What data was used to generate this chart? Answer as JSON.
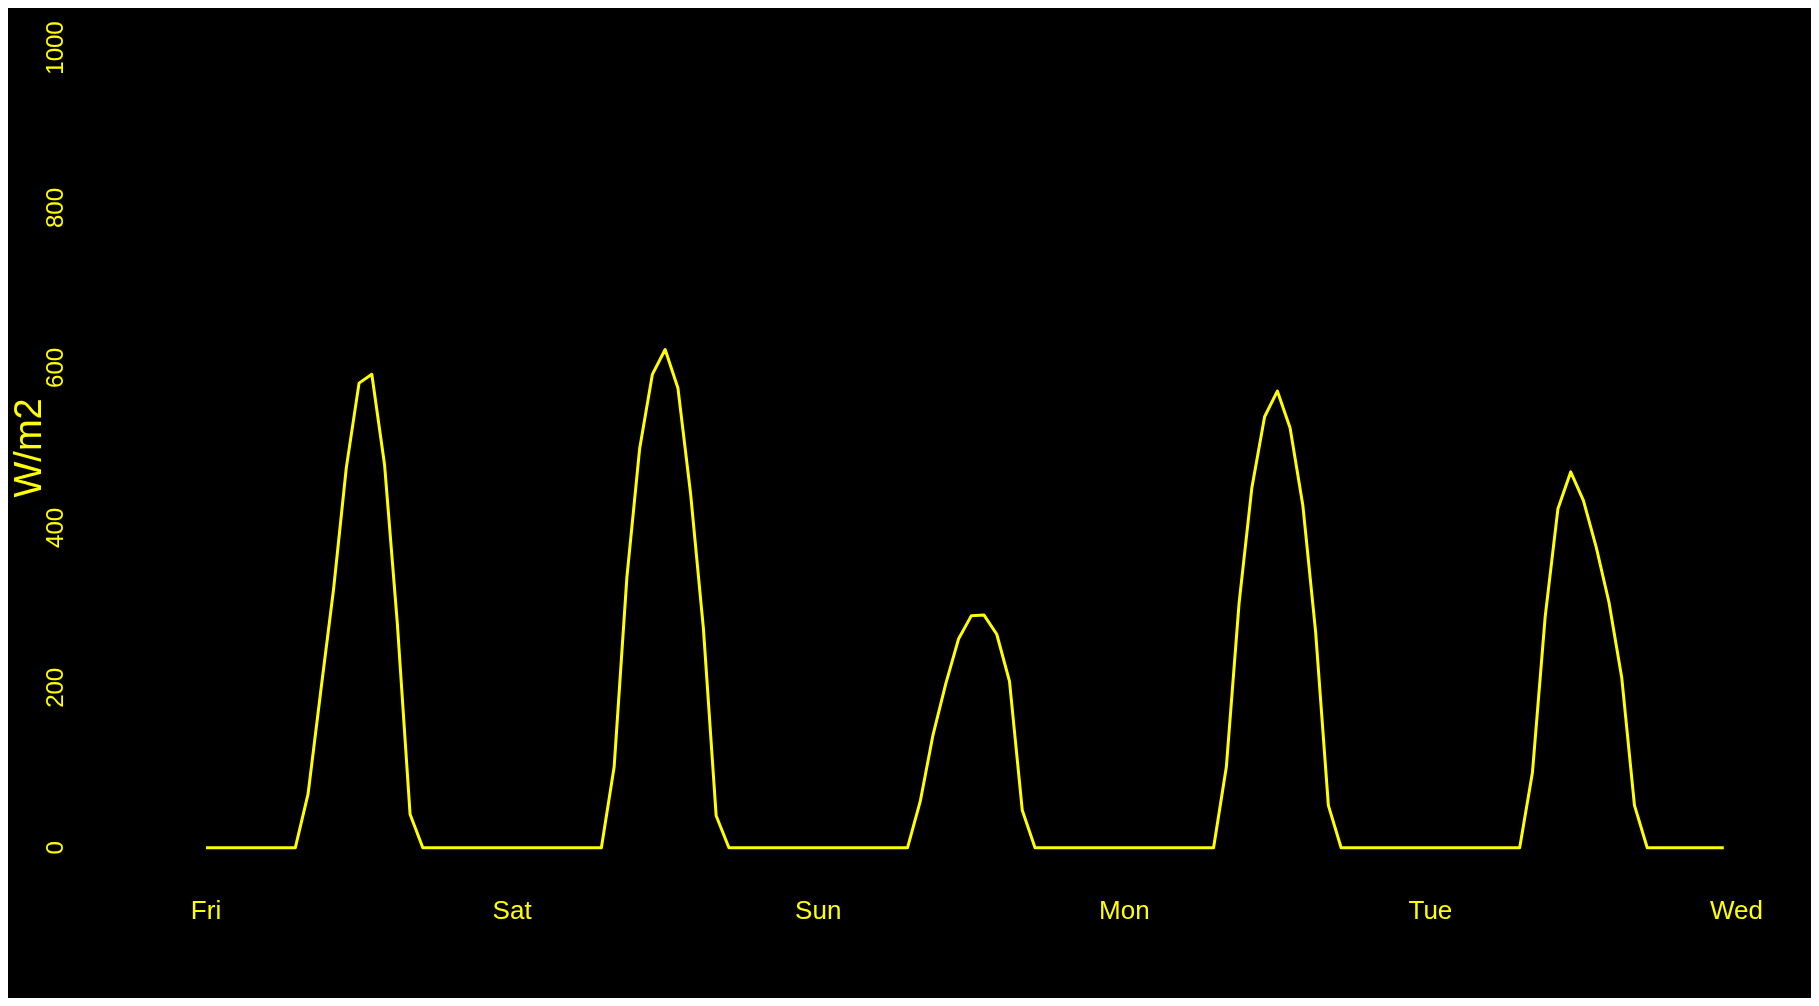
{
  "chart_data": {
    "type": "line",
    "ylabel": "W/m2",
    "categories": [
      "Fri",
      null,
      null,
      null,
      null,
      null,
      null,
      null,
      null,
      null,
      null,
      null,
      null,
      null,
      null,
      null,
      null,
      null,
      null,
      null,
      null,
      null,
      null,
      null,
      "Sat",
      null,
      null,
      null,
      null,
      null,
      null,
      null,
      null,
      null,
      null,
      null,
      null,
      null,
      null,
      null,
      null,
      null,
      null,
      null,
      null,
      null,
      null,
      null,
      "Sun",
      null,
      null,
      null,
      null,
      null,
      null,
      null,
      null,
      null,
      null,
      null,
      null,
      null,
      null,
      null,
      null,
      null,
      null,
      null,
      null,
      null,
      null,
      null,
      "Mon",
      null,
      null,
      null,
      null,
      null,
      null,
      null,
      null,
      null,
      null,
      null,
      null,
      null,
      null,
      null,
      null,
      null,
      null,
      null,
      null,
      null,
      null,
      null,
      "Tue",
      null,
      null,
      null,
      null,
      null,
      null,
      null,
      null,
      null,
      null,
      null,
      null,
      null,
      null,
      null,
      null,
      null,
      null,
      null,
      null,
      null,
      null,
      null,
      "Wed"
    ],
    "series": [
      {
        "color": "#ffff00",
        "values": [
          0,
          0,
          0,
          0,
          0,
          0,
          0,
          0,
          67,
          196,
          323,
          475,
          581,
          592,
          479,
          281,
          42,
          0,
          0,
          0,
          0,
          0,
          0,
          0,
          0,
          0,
          0,
          0,
          0,
          0,
          0,
          0,
          101,
          338,
          499,
          592,
          623,
          575,
          442,
          274,
          40,
          0,
          0,
          0,
          0,
          0,
          0,
          0,
          0,
          0,
          0,
          0,
          0,
          0,
          0,
          0,
          58,
          141,
          205,
          261,
          290,
          291,
          267,
          208,
          47,
          0,
          0,
          0,
          0,
          0,
          0,
          0,
          0,
          0,
          0,
          0,
          0,
          0,
          0,
          0,
          101,
          306,
          450,
          539,
          571,
          525,
          428,
          270,
          53,
          0,
          0,
          0,
          0,
          0,
          0,
          0,
          0,
          0,
          0,
          0,
          0,
          0,
          0,
          0,
          94,
          289,
          424,
          470,
          434,
          376,
          307,
          213,
          53,
          0,
          0,
          0,
          0,
          0,
          0,
          0,
          null
        ]
      }
    ],
    "ylim": [
      0,
      1000
    ],
    "yticks": [
      0,
      200,
      400,
      600,
      800,
      1000
    ],
    "grid": false,
    "legend": false,
    "marker": "none",
    "line_style": "solid"
  }
}
